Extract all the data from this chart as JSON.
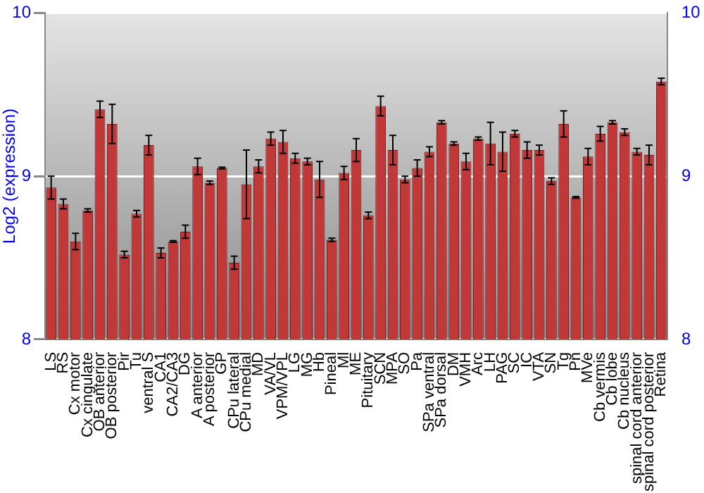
{
  "chart_data": {
    "type": "bar",
    "ylabel": "Log2 (expression)",
    "categories": [
      "LS",
      "RS",
      "Cx motor",
      "Cx cingulate",
      "OB anterior",
      "OB posterior",
      "Pir",
      "Tu",
      "ventral S",
      "CA1",
      "CA2/CA3",
      "DG",
      "A anterior",
      "A posterior",
      "GP",
      "CPu lateral",
      "CPu medial",
      "MD",
      "VA/VL",
      "VPM/VPL",
      "LG",
      "MG",
      "Hb",
      "Pineal",
      "Ml",
      "ME",
      "Pituitary",
      "SCN",
      "MPA",
      "SO",
      "Pa",
      "SPa ventral",
      "SPa dorsal",
      "DM",
      "VMH",
      "Arc",
      "LH",
      "PAG",
      "SC",
      "IC",
      "VTA",
      "SN",
      "Tg",
      "Pn",
      "MVe",
      "Cb vermis",
      "Cb lobe",
      "Cb nucleus",
      "spinal cord anterior",
      "spinal cord posterior",
      "Retina"
    ],
    "values": [
      8.93,
      8.83,
      8.6,
      8.79,
      9.41,
      9.32,
      8.52,
      8.77,
      9.19,
      8.53,
      8.6,
      8.66,
      9.06,
      8.96,
      9.05,
      8.47,
      8.95,
      9.06,
      9.23,
      9.21,
      9.11,
      9.09,
      8.98,
      8.61,
      9.02,
      9.16,
      8.76,
      9.43,
      9.16,
      8.98,
      9.05,
      9.15,
      9.33,
      9.2,
      9.09,
      9.23,
      9.2,
      9.15,
      9.26,
      9.16,
      9.16,
      8.97,
      9.32,
      8.87,
      9.12,
      9.26,
      9.33,
      9.27,
      9.15,
      9.13,
      9.58
    ],
    "errors": [
      0.07,
      0.03,
      0.05,
      0.01,
      0.05,
      0.12,
      0.02,
      0.02,
      0.06,
      0.03,
      0.005,
      0.04,
      0.05,
      0.01,
      0.005,
      0.04,
      0.21,
      0.04,
      0.04,
      0.07,
      0.03,
      0.02,
      0.11,
      0.01,
      0.04,
      0.07,
      0.02,
      0.06,
      0.09,
      0.02,
      0.05,
      0.03,
      0.01,
      0.01,
      0.05,
      0.01,
      0.13,
      0.12,
      0.02,
      0.05,
      0.03,
      0.02,
      0.08,
      0.005,
      0.05,
      0.045,
      0.01,
      0.02,
      0.02,
      0.06,
      0.02
    ],
    "color": "#c03838",
    "ylim": [
      8,
      10
    ],
    "yticks": [
      8,
      9,
      10
    ],
    "y2lim": [
      8,
      10
    ],
    "y2ticks": [
      8,
      9,
      10
    ],
    "grid": "y",
    "legend": false
  }
}
